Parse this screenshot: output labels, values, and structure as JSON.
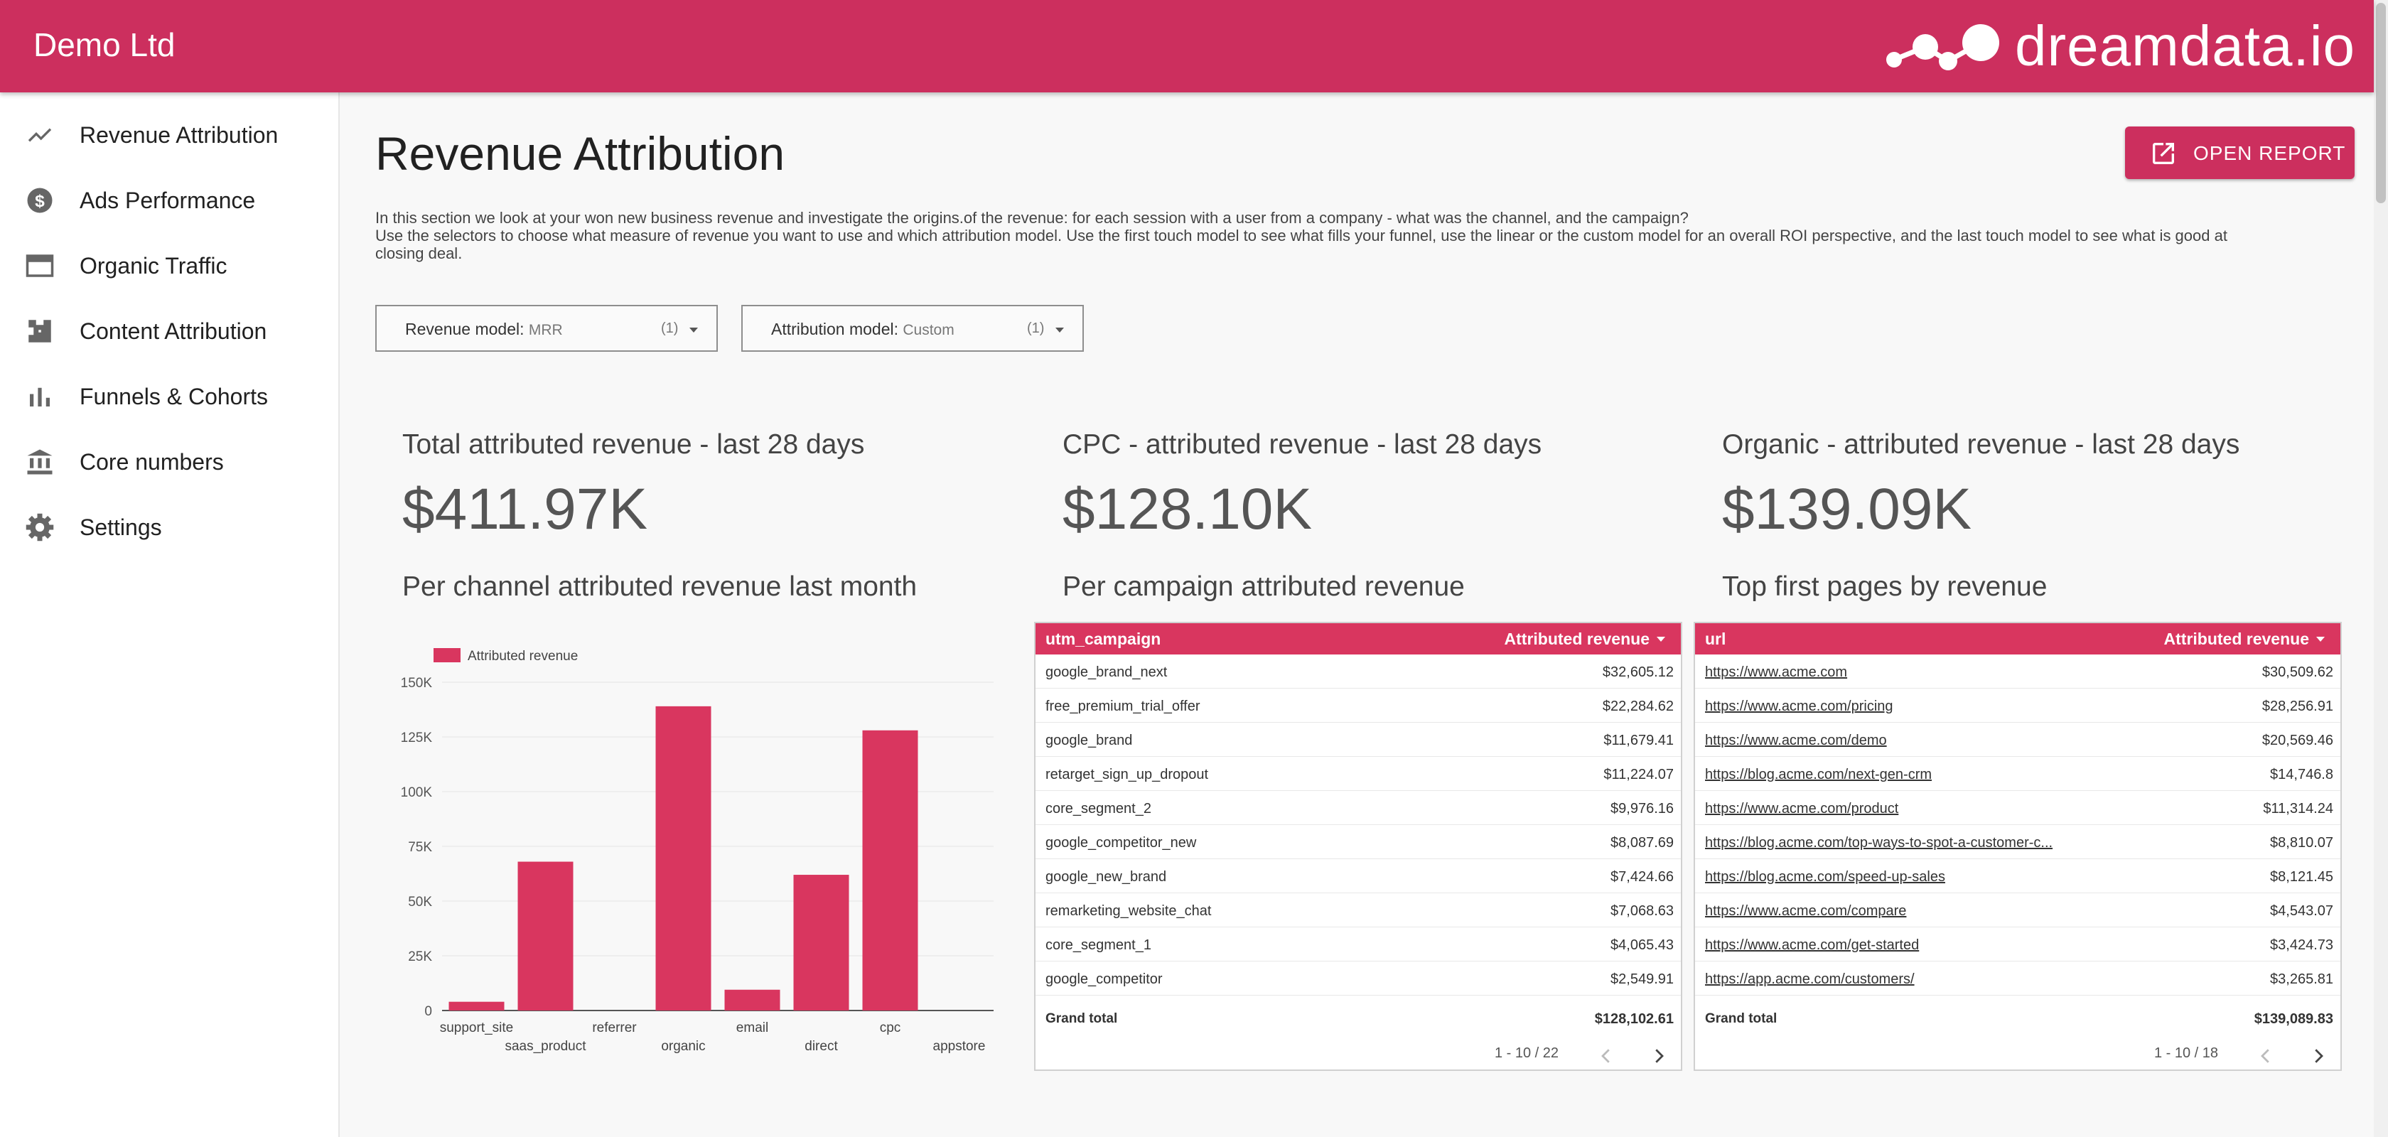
{
  "header": {
    "company": "Demo Ltd",
    "logo_text": "dreamdata.io",
    "color": "#cc2f5e"
  },
  "sidebar": {
    "items": [
      {
        "label": "Revenue Attribution",
        "icon": "trending-line-icon"
      },
      {
        "label": "Ads Performance",
        "icon": "dollar-circle-icon"
      },
      {
        "label": "Organic Traffic",
        "icon": "browser-window-icon"
      },
      {
        "label": "Content Attribution",
        "icon": "puzzle-icon"
      },
      {
        "label": "Funnels & Cohorts",
        "icon": "bar-chart-icon"
      },
      {
        "label": "Core numbers",
        "icon": "bank-icon"
      },
      {
        "label": "Settings",
        "icon": "gear-icon"
      }
    ]
  },
  "main": {
    "title": "Revenue Attribution",
    "open_report_label": "OPEN REPORT",
    "intro_line1": "In this section we look at your won new business revenue and investigate the origins.of the revenue: for each session with a user from a company - what was the channel, and the campaign?",
    "intro_line2": "Use the selectors to choose what measure of revenue you want to use and which attribution model. Use the first touch model to see what fills your funnel, use the linear or the custom model for an overall ROI perspective, and the last touch model to see what is good at closing deal.",
    "selectors": [
      {
        "label": "Revenue model:",
        "value": "MRR",
        "count": "(1)"
      },
      {
        "label": "Attribution model:",
        "value": "Custom",
        "count": "(1)"
      }
    ],
    "kpis": [
      {
        "title": "Total attributed revenue - last 28 days",
        "value": "$411.97K"
      },
      {
        "title": "CPC - attributed revenue - last 28 days",
        "value": "$128.10K"
      },
      {
        "title": "Organic - attributed revenue - last 28 days",
        "value": "$139.09K"
      }
    ],
    "section_titles": [
      "Per channel attributed revenue last month",
      "Per campaign attributed revenue",
      "Top first pages by revenue"
    ]
  },
  "campaign_table": {
    "col1": "utm_campaign",
    "col2": "Attributed revenue",
    "rows": [
      [
        "google_brand_next",
        "$32,605.12"
      ],
      [
        "free_premium_trial_offer",
        "$22,284.62"
      ],
      [
        "google_brand",
        "$11,679.41"
      ],
      [
        "retarget_sign_up_dropout",
        "$11,224.07"
      ],
      [
        "core_segment_2",
        "$9,976.16"
      ],
      [
        "google_competitor_new",
        "$8,087.69"
      ],
      [
        "google_new_brand",
        "$7,424.66"
      ],
      [
        "remarketing_website_chat",
        "$7,068.63"
      ],
      [
        "core_segment_1",
        "$4,065.43"
      ],
      [
        "google_competitor",
        "$2,549.91"
      ]
    ],
    "total_label": "Grand total",
    "total_value": "$128,102.61",
    "pager": "1 - 10 / 22"
  },
  "pages_table": {
    "col1": "url",
    "col2": "Attributed revenue",
    "rows": [
      [
        "https://www.acme.com",
        "$30,509.62"
      ],
      [
        "https://www.acme.com/pricing",
        "$28,256.91"
      ],
      [
        "https://www.acme.com/demo",
        "$20,569.46"
      ],
      [
        "https://blog.acme.com/next-gen-crm",
        "$14,746.8"
      ],
      [
        "https://www.acme.com/product",
        "$11,314.24"
      ],
      [
        "https://blog.acme.com/top-ways-to-spot-a-customer-c...",
        "$8,810.07"
      ],
      [
        "https://blog.acme.com/speed-up-sales",
        "$8,121.45"
      ],
      [
        "https://www.acme.com/compare",
        "$4,543.07"
      ],
      [
        "https://www.acme.com/get-started",
        "$3,424.73"
      ],
      [
        "https://app.acme.com/customers/",
        "$3,265.81"
      ]
    ],
    "total_label": "Grand total",
    "total_value": "$139,089.83",
    "pager": "1 - 10 / 18"
  },
  "chart_data": {
    "type": "bar",
    "categories": [
      "support_site",
      "saas_product",
      "referrer",
      "organic",
      "email",
      "direct",
      "cpc",
      "appstore"
    ],
    "series": [
      {
        "name": "Attributed revenue",
        "values": [
          4000,
          68000,
          0,
          139000,
          9500,
          62000,
          128000,
          0
        ],
        "color": "#d9365f"
      }
    ],
    "ylim": [
      0,
      150000
    ],
    "yticks": [
      "0",
      "25K",
      "50K",
      "75K",
      "100K",
      "125K",
      "150K"
    ],
    "legend": "top-left",
    "grid": true
  }
}
